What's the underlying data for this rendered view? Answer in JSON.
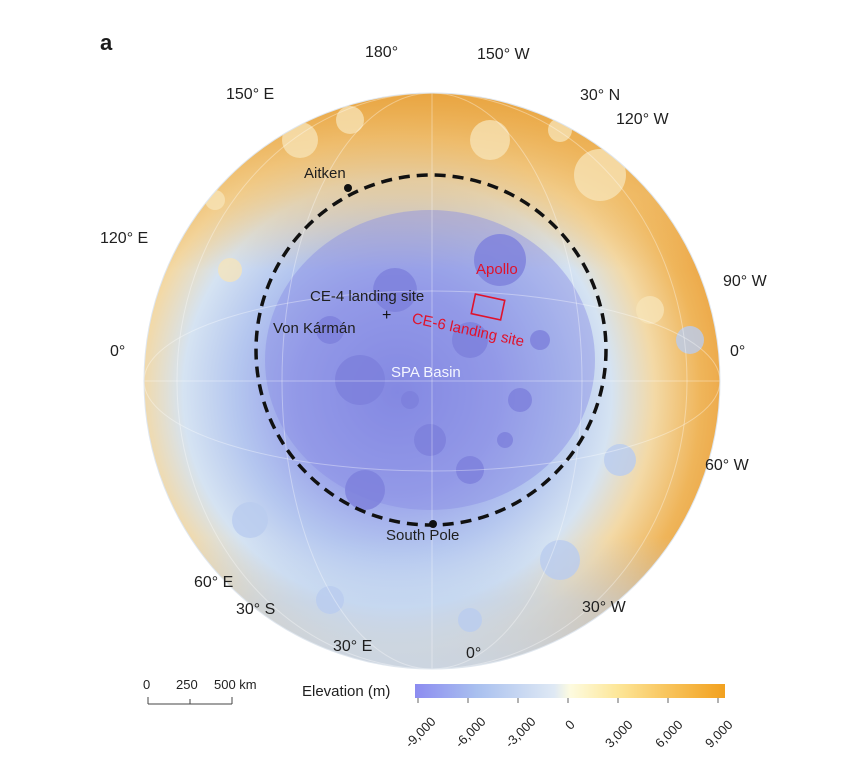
{
  "panel_label": "a",
  "coordinates": {
    "top_180": "180°",
    "top_150w": "150° W",
    "top_150e": "150° E",
    "top_30n": "30° N",
    "top_120w": "120° W",
    "left_120e": "120° E",
    "right_90w": "90° W",
    "left_0": "0°",
    "right_0": "0°",
    "right_60w": "60° W",
    "bottom_60e": "60° E",
    "bottom_30s": "30° S",
    "bottom_30w": "30° W",
    "bottom_30e": "30° E",
    "bottom_0": "0°"
  },
  "features": {
    "aitken": "Aitken",
    "apollo": "Apollo",
    "ce4": "CE-4 landing site",
    "von_karman": "Von Kármán",
    "ce6": "CE-6 landing site",
    "spa": "SPA Basin",
    "south_pole": "South Pole"
  },
  "scale_bar": {
    "labels": [
      "0",
      "250",
      "500 km"
    ]
  },
  "legend": {
    "title": "Elevation (m)",
    "ticks": [
      "-9,000",
      "-6,000",
      "-3,000",
      "0",
      "3,000",
      "6,000",
      "9,000"
    ],
    "colors": [
      "#8c8cf0",
      "#a9c0ef",
      "#dfe9f4",
      "#fdfbe0",
      "#fde79a",
      "#f8c35a",
      "#f2a11f"
    ]
  }
}
